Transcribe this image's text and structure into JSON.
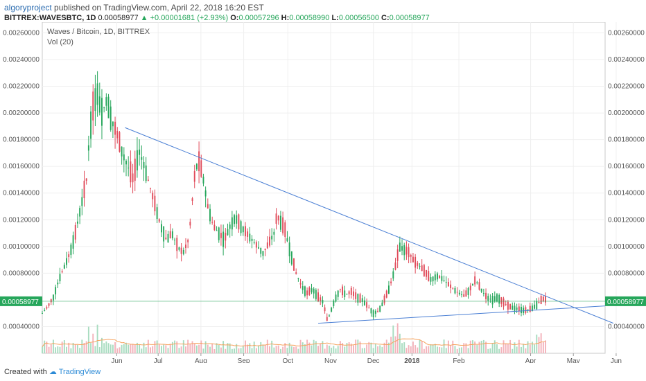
{
  "header": {
    "author": "algoryproject",
    "published": "published on TradingView.com, April 22, 2018 16:20 EST",
    "symbol": "BITTREX:WAVESBTC, 1D",
    "last": "0.00058977",
    "change": "+0.00001681 (+2.93%)",
    "o_label": "O:",
    "o": "0.00057296",
    "h_label": "H:",
    "h": "0.00058990",
    "l_label": "L:",
    "l": "0.00056500",
    "c_label": "C:",
    "c": "0.00058977"
  },
  "footer": {
    "created_with": "Created with",
    "brand": "TradingView"
  },
  "chart_data": {
    "type": "candlestick",
    "title": "Waves / Bitcoin, 1D, BITTREX",
    "volume_label": "Vol (20)",
    "ylim": [
      0.0002,
      0.00268
    ],
    "y_ticks": [
      "0.00260000",
      "0.00240000",
      "0.00220000",
      "0.00200000",
      "0.00180000",
      "0.00160000",
      "0.00140000",
      "0.00120000",
      "0.00100000",
      "0.00080000",
      "0.00040000"
    ],
    "x_ticks": [
      "Jun",
      "Jul",
      "Aug",
      "Sep",
      "Oct",
      "Nov",
      "Dec",
      "2018",
      "Feb",
      "Apr",
      "May",
      "Jun"
    ],
    "last_price_label": "0.00058977",
    "last_price": 0.00058977,
    "grid": true,
    "colors": {
      "up": "#26a65b",
      "down": "#e04a59",
      "trendline": "#4a7fd4",
      "volume_ma": "#f5a25d",
      "last_price_line": "#26a65b"
    },
    "price_path": [
      [
        0,
        0.0005
      ],
      [
        4,
        0.00055
      ],
      [
        8,
        0.00062
      ],
      [
        12,
        0.00075
      ],
      [
        16,
        0.00085
      ],
      [
        20,
        0.00095
      ],
      [
        24,
        0.0011
      ],
      [
        28,
        0.0013
      ],
      [
        32,
        0.0015
      ],
      [
        34,
        0.0018
      ],
      [
        36,
        0.002
      ],
      [
        38,
        0.0021
      ],
      [
        40,
        0.00215
      ],
      [
        42,
        0.00205
      ],
      [
        44,
        0.002
      ],
      [
        46,
        0.0021
      ],
      [
        48,
        0.00205
      ],
      [
        50,
        0.00195
      ],
      [
        54,
        0.00185
      ],
      [
        58,
        0.0017
      ],
      [
        62,
        0.0016
      ],
      [
        66,
        0.0015
      ],
      [
        70,
        0.00172
      ],
      [
        74,
        0.0016
      ],
      [
        78,
        0.00145
      ],
      [
        82,
        0.0013
      ],
      [
        86,
        0.00115
      ],
      [
        90,
        0.00105
      ],
      [
        94,
        0.0011
      ],
      [
        98,
        0.001
      ],
      [
        102,
        0.00095
      ],
      [
        106,
        0.00105
      ],
      [
        108,
        0.00125
      ],
      [
        110,
        0.0015
      ],
      [
        113,
        0.00165
      ],
      [
        116,
        0.00155
      ],
      [
        120,
        0.0013
      ],
      [
        124,
        0.00115
      ],
      [
        128,
        0.0011
      ],
      [
        132,
        0.00105
      ],
      [
        136,
        0.00115
      ],
      [
        140,
        0.00122
      ],
      [
        144,
        0.00115
      ],
      [
        148,
        0.0011
      ],
      [
        152,
        0.00105
      ],
      [
        156,
        0.001
      ],
      [
        160,
        0.00095
      ],
      [
        164,
        0.00102
      ],
      [
        168,
        0.0011
      ],
      [
        170,
        0.00123
      ],
      [
        173,
        0.00118
      ],
      [
        176,
        0.00112
      ],
      [
        180,
        0.00095
      ],
      [
        184,
        0.0008
      ],
      [
        188,
        0.0007
      ],
      [
        192,
        0.00065
      ],
      [
        196,
        0.00068
      ],
      [
        200,
        0.00062
      ],
      [
        204,
        0.00058
      ],
      [
        206,
        0.00045
      ],
      [
        208,
        0.00048
      ],
      [
        212,
        0.0006
      ],
      [
        216,
        0.00068
      ],
      [
        220,
        0.00064
      ],
      [
        224,
        0.00066
      ],
      [
        228,
        0.00062
      ],
      [
        232,
        0.0006
      ],
      [
        236,
        0.00055
      ],
      [
        240,
        0.0005
      ],
      [
        244,
        0.00052
      ],
      [
        248,
        0.0006
      ],
      [
        252,
        0.0007
      ],
      [
        256,
        0.00085
      ],
      [
        259,
        0.001
      ],
      [
        262,
        0.00098
      ],
      [
        266,
        0.00095
      ],
      [
        270,
        0.00088
      ],
      [
        274,
        0.00085
      ],
      [
        278,
        0.0008
      ],
      [
        282,
        0.00075
      ],
      [
        286,
        0.00078
      ],
      [
        290,
        0.00076
      ],
      [
        294,
        0.00072
      ],
      [
        298,
        0.00068
      ],
      [
        302,
        0.00065
      ],
      [
        306,
        0.00063
      ],
      [
        310,
        0.00068
      ],
      [
        314,
        0.00075
      ],
      [
        318,
        0.00068
      ],
      [
        322,
        0.00062
      ],
      [
        326,
        0.0006
      ],
      [
        330,
        0.00062
      ],
      [
        334,
        0.00058
      ],
      [
        338,
        0.00055
      ],
      [
        342,
        0.00054
      ],
      [
        346,
        0.00053
      ],
      [
        350,
        0.00052
      ],
      [
        354,
        0.00053
      ],
      [
        358,
        0.00056
      ],
      [
        362,
        0.0006
      ],
      [
        364,
        0.00061
      ],
      [
        366,
        0.00059
      ]
    ],
    "trendlines": [
      {
        "name": "upper",
        "from": [
          60,
          0.00189
        ],
        "to": [
          414,
          0.000425
        ]
      },
      {
        "name": "lower",
        "from": [
          200,
          0.000425
        ],
        "to": [
          408,
          0.000555
        ]
      }
    ],
    "x_range_days": [
      0,
      408
    ]
  }
}
